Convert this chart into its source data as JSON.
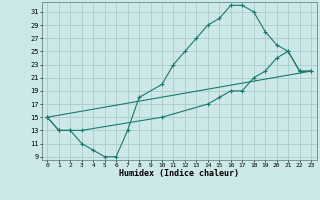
{
  "xlabel": "Humidex (Indice chaleur)",
  "background_color": "#cce8e8",
  "grid_color": "#b0d0d0",
  "line_color": "#1a7a6a",
  "xlim": [
    -0.5,
    23.5
  ],
  "ylim": [
    8.5,
    32.5
  ],
  "xticks": [
    0,
    1,
    2,
    3,
    4,
    5,
    6,
    7,
    8,
    9,
    10,
    11,
    12,
    13,
    14,
    15,
    16,
    17,
    18,
    19,
    20,
    21,
    22,
    23
  ],
  "yticks": [
    9,
    11,
    13,
    15,
    17,
    19,
    21,
    23,
    25,
    27,
    29,
    31
  ],
  "line1_x": [
    0,
    1,
    2,
    3,
    4,
    5,
    6,
    7,
    8,
    10,
    11,
    12,
    13,
    14,
    15,
    16,
    17,
    18,
    19,
    20,
    21,
    22,
    23
  ],
  "line1_y": [
    15,
    13,
    13,
    11,
    10,
    9,
    9,
    13,
    18,
    20,
    23,
    25,
    27,
    29,
    30,
    32,
    32,
    31,
    28,
    26,
    25,
    22,
    22
  ],
  "line2_x": [
    0,
    1,
    2,
    3,
    10,
    14,
    15,
    16,
    17,
    18,
    19,
    20,
    21,
    22,
    23
  ],
  "line2_y": [
    15,
    13,
    13,
    13,
    15,
    17,
    18,
    19,
    19,
    21,
    22,
    24,
    25,
    22,
    22
  ],
  "line3_x": [
    0,
    23
  ],
  "line3_y": [
    15,
    22
  ]
}
